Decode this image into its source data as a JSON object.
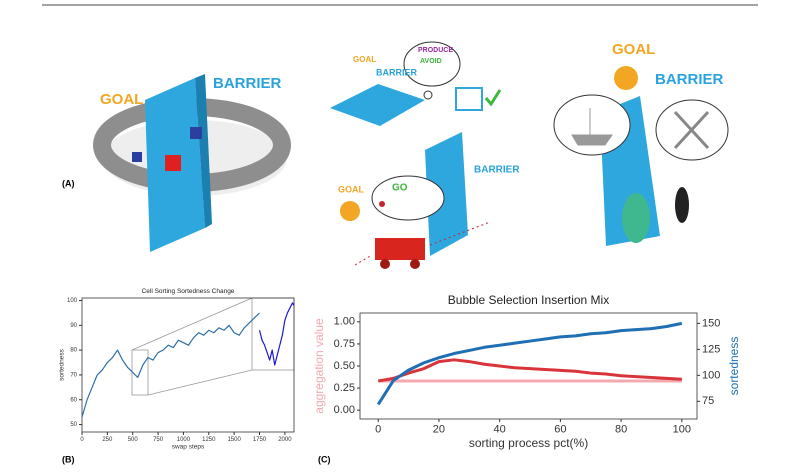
{
  "figure": {
    "panel_labels": [
      "(A)",
      "(B)",
      "(C)"
    ],
    "scene_1": {
      "goal": "GOAL",
      "barrier": "BARRIER"
    },
    "scene_2": {
      "goal": "GOAL",
      "barrier": "BARRIER",
      "produce": "PRODUCE",
      "avoid": "AVOID",
      "goal_2": "GOAL",
      "barrier_2": "BARRIER",
      "go": "GO"
    },
    "scene_3": {
      "goal": "GOAL",
      "barrier": "BARRIER"
    }
  },
  "chart_data": [
    {
      "type": "line",
      "title": "Cell Sorting Sortedness Change",
      "xlabel": "swap steps",
      "ylabel": "sortedness",
      "xlim": [
        0,
        2090
      ],
      "ylim": [
        47,
        101
      ],
      "xticks": [
        0,
        250,
        500,
        750,
        1000,
        1250,
        1500,
        1750,
        2000
      ],
      "yticks": [
        50,
        60,
        70,
        80,
        90,
        100
      ],
      "series": [
        {
          "color": "#2f6fa8",
          "x": [
            0,
            50,
            100,
            150,
            200,
            250,
            300,
            350,
            400,
            450,
            500,
            550,
            600,
            650,
            700,
            750,
            800,
            850,
            900,
            950,
            1000,
            1050,
            1100,
            1150,
            1200,
            1250,
            1300,
            1350,
            1400,
            1450,
            1500,
            1550,
            1600,
            1650,
            1700,
            1750
          ],
          "values": [
            53,
            60,
            65,
            70,
            72,
            75,
            77,
            80,
            76,
            73,
            71,
            69,
            74,
            77,
            76,
            79,
            80,
            82,
            81,
            84,
            83,
            82,
            85,
            87,
            86,
            88,
            87,
            89,
            88,
            90,
            87,
            86,
            89,
            91,
            93,
            95
          ]
        },
        {
          "color": "#1a1ad0",
          "x": [
            1750,
            1775,
            1800,
            1825,
            1850,
            1875,
            1900,
            1925,
            1950,
            1975,
            2000,
            2025,
            2050,
            2075,
            2090
          ],
          "values": [
            88,
            84,
            82,
            79,
            76,
            80,
            74,
            78,
            82,
            86,
            92,
            95,
            97,
            99,
            98
          ]
        }
      ]
    },
    {
      "type": "line",
      "title": "Bubble Selection Insertion Mix",
      "xlabel": "sorting process pct(%)",
      "ylabel": "aggregation value",
      "y2label": "sortedness",
      "xlim": [
        -6,
        105
      ],
      "ylim": [
        -0.1,
        1.1
      ],
      "y2lim": [
        58,
        160
      ],
      "xticks": [
        0,
        20,
        40,
        60,
        80,
        100
      ],
      "yticks": [
        {
          "value": 0,
          "label": "0.00"
        },
        {
          "value": 0.25,
          "label": "0.25"
        },
        {
          "value": 0.5,
          "label": "0.50"
        },
        {
          "value": 0.75,
          "label": "0.75"
        },
        {
          "value": 1,
          "label": "1.00"
        }
      ],
      "y2ticks": [
        75,
        100,
        125,
        150
      ],
      "series": [
        {
          "color": "#f4a8b0",
          "x": [
            0,
            100
          ],
          "values": [
            0.33,
            0.33
          ]
        },
        {
          "color": "#d9343a",
          "x": [
            0,
            5,
            10,
            15,
            20,
            25,
            30,
            35,
            40,
            45,
            50,
            55,
            60,
            65,
            70,
            75,
            80,
            85,
            90,
            95,
            100
          ],
          "values": [
            0.33,
            0.36,
            0.42,
            0.47,
            0.55,
            0.57,
            0.55,
            0.52,
            0.5,
            0.48,
            0.47,
            0.46,
            0.45,
            0.44,
            0.42,
            0.41,
            0.39,
            0.38,
            0.37,
            0.36,
            0.35
          ]
        },
        {
          "color": "#1f6fb4",
          "axis": "y2",
          "x": [
            0,
            5,
            10,
            15,
            20,
            25,
            30,
            35,
            40,
            45,
            50,
            55,
            60,
            65,
            70,
            75,
            80,
            85,
            90,
            95,
            100
          ],
          "values": [
            72,
            95,
            105,
            112,
            117,
            121,
            124,
            127,
            129,
            131,
            133,
            135,
            137,
            138,
            140,
            141,
            143,
            144,
            145,
            147,
            150
          ]
        }
      ]
    }
  ]
}
